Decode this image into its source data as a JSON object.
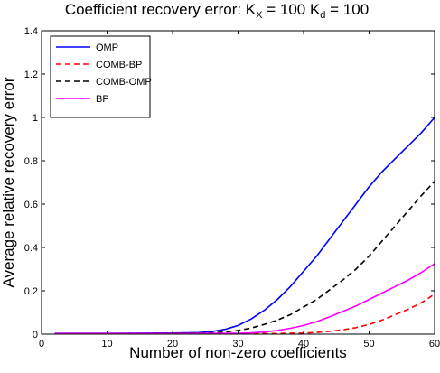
{
  "chart_data": {
    "type": "line",
    "title": {
      "main": "Coefficient recovery error: K",
      "sub1": "X",
      "mid": " = 100 K",
      "sub2": "d",
      "end": " = 100"
    },
    "xlabel": "Number of non-zero coefficients",
    "ylabel": "Average relative recovery error",
    "xlim": [
      0,
      60
    ],
    "ylim": [
      0,
      1.4
    ],
    "xticks": [
      0,
      10,
      20,
      30,
      40,
      50,
      60
    ],
    "yticks": [
      0,
      0.2,
      0.4,
      0.6,
      0.8,
      1,
      1.2,
      1.4
    ],
    "xtick_labels": [
      "0",
      "10",
      "20",
      "30",
      "40",
      "50",
      "60"
    ],
    "ytick_labels": [
      "0",
      "0.2",
      "0.4",
      "0.6",
      "0.8",
      "1",
      "1.2",
      "1.4"
    ],
    "grid": false,
    "legend_position": "top-left",
    "series": [
      {
        "name": "OMP",
        "color": "#0000ff",
        "dash": "solid",
        "x": [
          2,
          10,
          20,
          24,
          26,
          28,
          30,
          32,
          34,
          36,
          38,
          40,
          42,
          44,
          46,
          48,
          50,
          52,
          54,
          56,
          58,
          60
        ],
        "y": [
          0.004,
          0.004,
          0.005,
          0.007,
          0.012,
          0.022,
          0.04,
          0.07,
          0.11,
          0.16,
          0.22,
          0.29,
          0.36,
          0.44,
          0.52,
          0.6,
          0.68,
          0.75,
          0.81,
          0.87,
          0.93,
          1.0
        ]
      },
      {
        "name": "COMB-BP",
        "color": "#ff0000",
        "dash": "dashed",
        "x": [
          2,
          10,
          20,
          30,
          34,
          36,
          38,
          40,
          42,
          44,
          46,
          48,
          50,
          52,
          54,
          56,
          58,
          60
        ],
        "y": [
          0.003,
          0.003,
          0.003,
          0.003,
          0.003,
          0.003,
          0.004,
          0.005,
          0.008,
          0.013,
          0.02,
          0.03,
          0.045,
          0.065,
          0.09,
          0.115,
          0.145,
          0.185
        ]
      },
      {
        "name": "COMB-OMP",
        "color": "#000000",
        "dash": "dashed",
        "x": [
          2,
          10,
          20,
          26,
          28,
          30,
          32,
          34,
          36,
          38,
          40,
          42,
          44,
          46,
          48,
          50,
          52,
          54,
          56,
          58,
          60
        ],
        "y": [
          0.003,
          0.003,
          0.004,
          0.006,
          0.01,
          0.017,
          0.028,
          0.045,
          0.065,
          0.09,
          0.125,
          0.16,
          0.205,
          0.25,
          0.3,
          0.36,
          0.43,
          0.5,
          0.57,
          0.64,
          0.705
        ]
      },
      {
        "name": "BP",
        "color": "#ff00ff",
        "dash": "solid",
        "x": [
          2,
          10,
          20,
          30,
          32,
          34,
          36,
          38,
          40,
          42,
          44,
          46,
          48,
          50,
          52,
          54,
          56,
          58,
          60
        ],
        "y": [
          0.003,
          0.003,
          0.003,
          0.004,
          0.006,
          0.01,
          0.017,
          0.027,
          0.04,
          0.058,
          0.08,
          0.105,
          0.13,
          0.16,
          0.19,
          0.22,
          0.25,
          0.285,
          0.325
        ]
      }
    ]
  }
}
